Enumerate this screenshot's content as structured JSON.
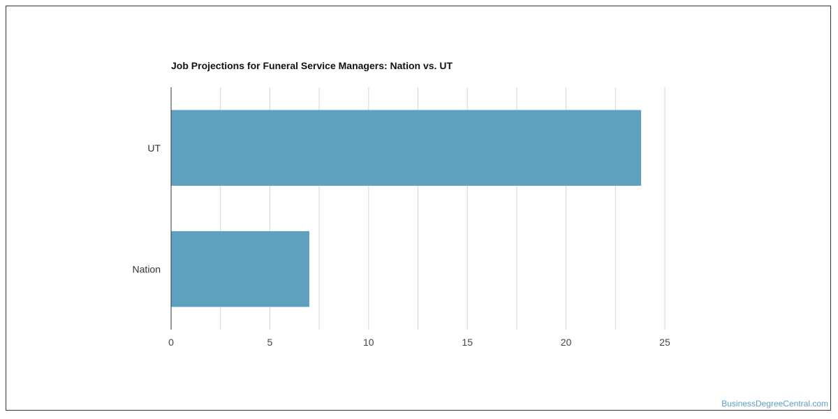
{
  "chart_data": {
    "type": "bar",
    "orientation": "horizontal",
    "title": "Job Projections for Funeral Service Managers: Nation vs. UT",
    "categories": [
      "UT",
      "Nation"
    ],
    "values": [
      23.8,
      7
    ],
    "xlabel": "",
    "ylabel": "",
    "xlim": [
      0,
      25
    ],
    "x_ticks": [
      0,
      5,
      10,
      15,
      20,
      25
    ],
    "x_tick_labels": [
      "0",
      "5",
      "10",
      "15",
      "20",
      "25"
    ],
    "grid": true,
    "bar_color": "#5ea1be"
  },
  "watermark": "BusinessDegreeCentral.com"
}
